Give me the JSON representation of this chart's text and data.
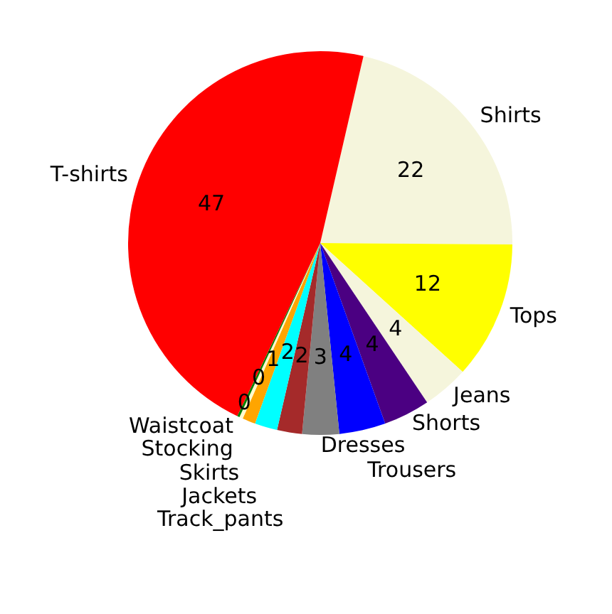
{
  "chart_data": {
    "type": "pie",
    "categories": [
      "Shirts",
      "Tops",
      "Jeans",
      "Shorts",
      "Trousers",
      "Dresses",
      "Track_pants",
      "Jackets",
      "Skirts",
      "Stocking",
      "Waistcoat",
      "T-shirts"
    ],
    "values": [
      21.5,
      11.6,
      3.9,
      3.9,
      3.9,
      3.1,
      2.1,
      1.9,
      1.1,
      0.3,
      0.2,
      46.5
    ],
    "value_labels": [
      "22",
      "12",
      "4",
      "4",
      "4",
      "3",
      "2",
      "2",
      "1",
      "0",
      "0",
      "47"
    ],
    "colors": [
      "#f5f5dc",
      "#ffff00",
      "#f5f5dc",
      "#4b0082",
      "#0000ff",
      "#808080",
      "#a52a2a",
      "#00ffff",
      "#ffa500",
      "#fffacd",
      "#008000",
      "#ff0000"
    ],
    "legend": false
  }
}
